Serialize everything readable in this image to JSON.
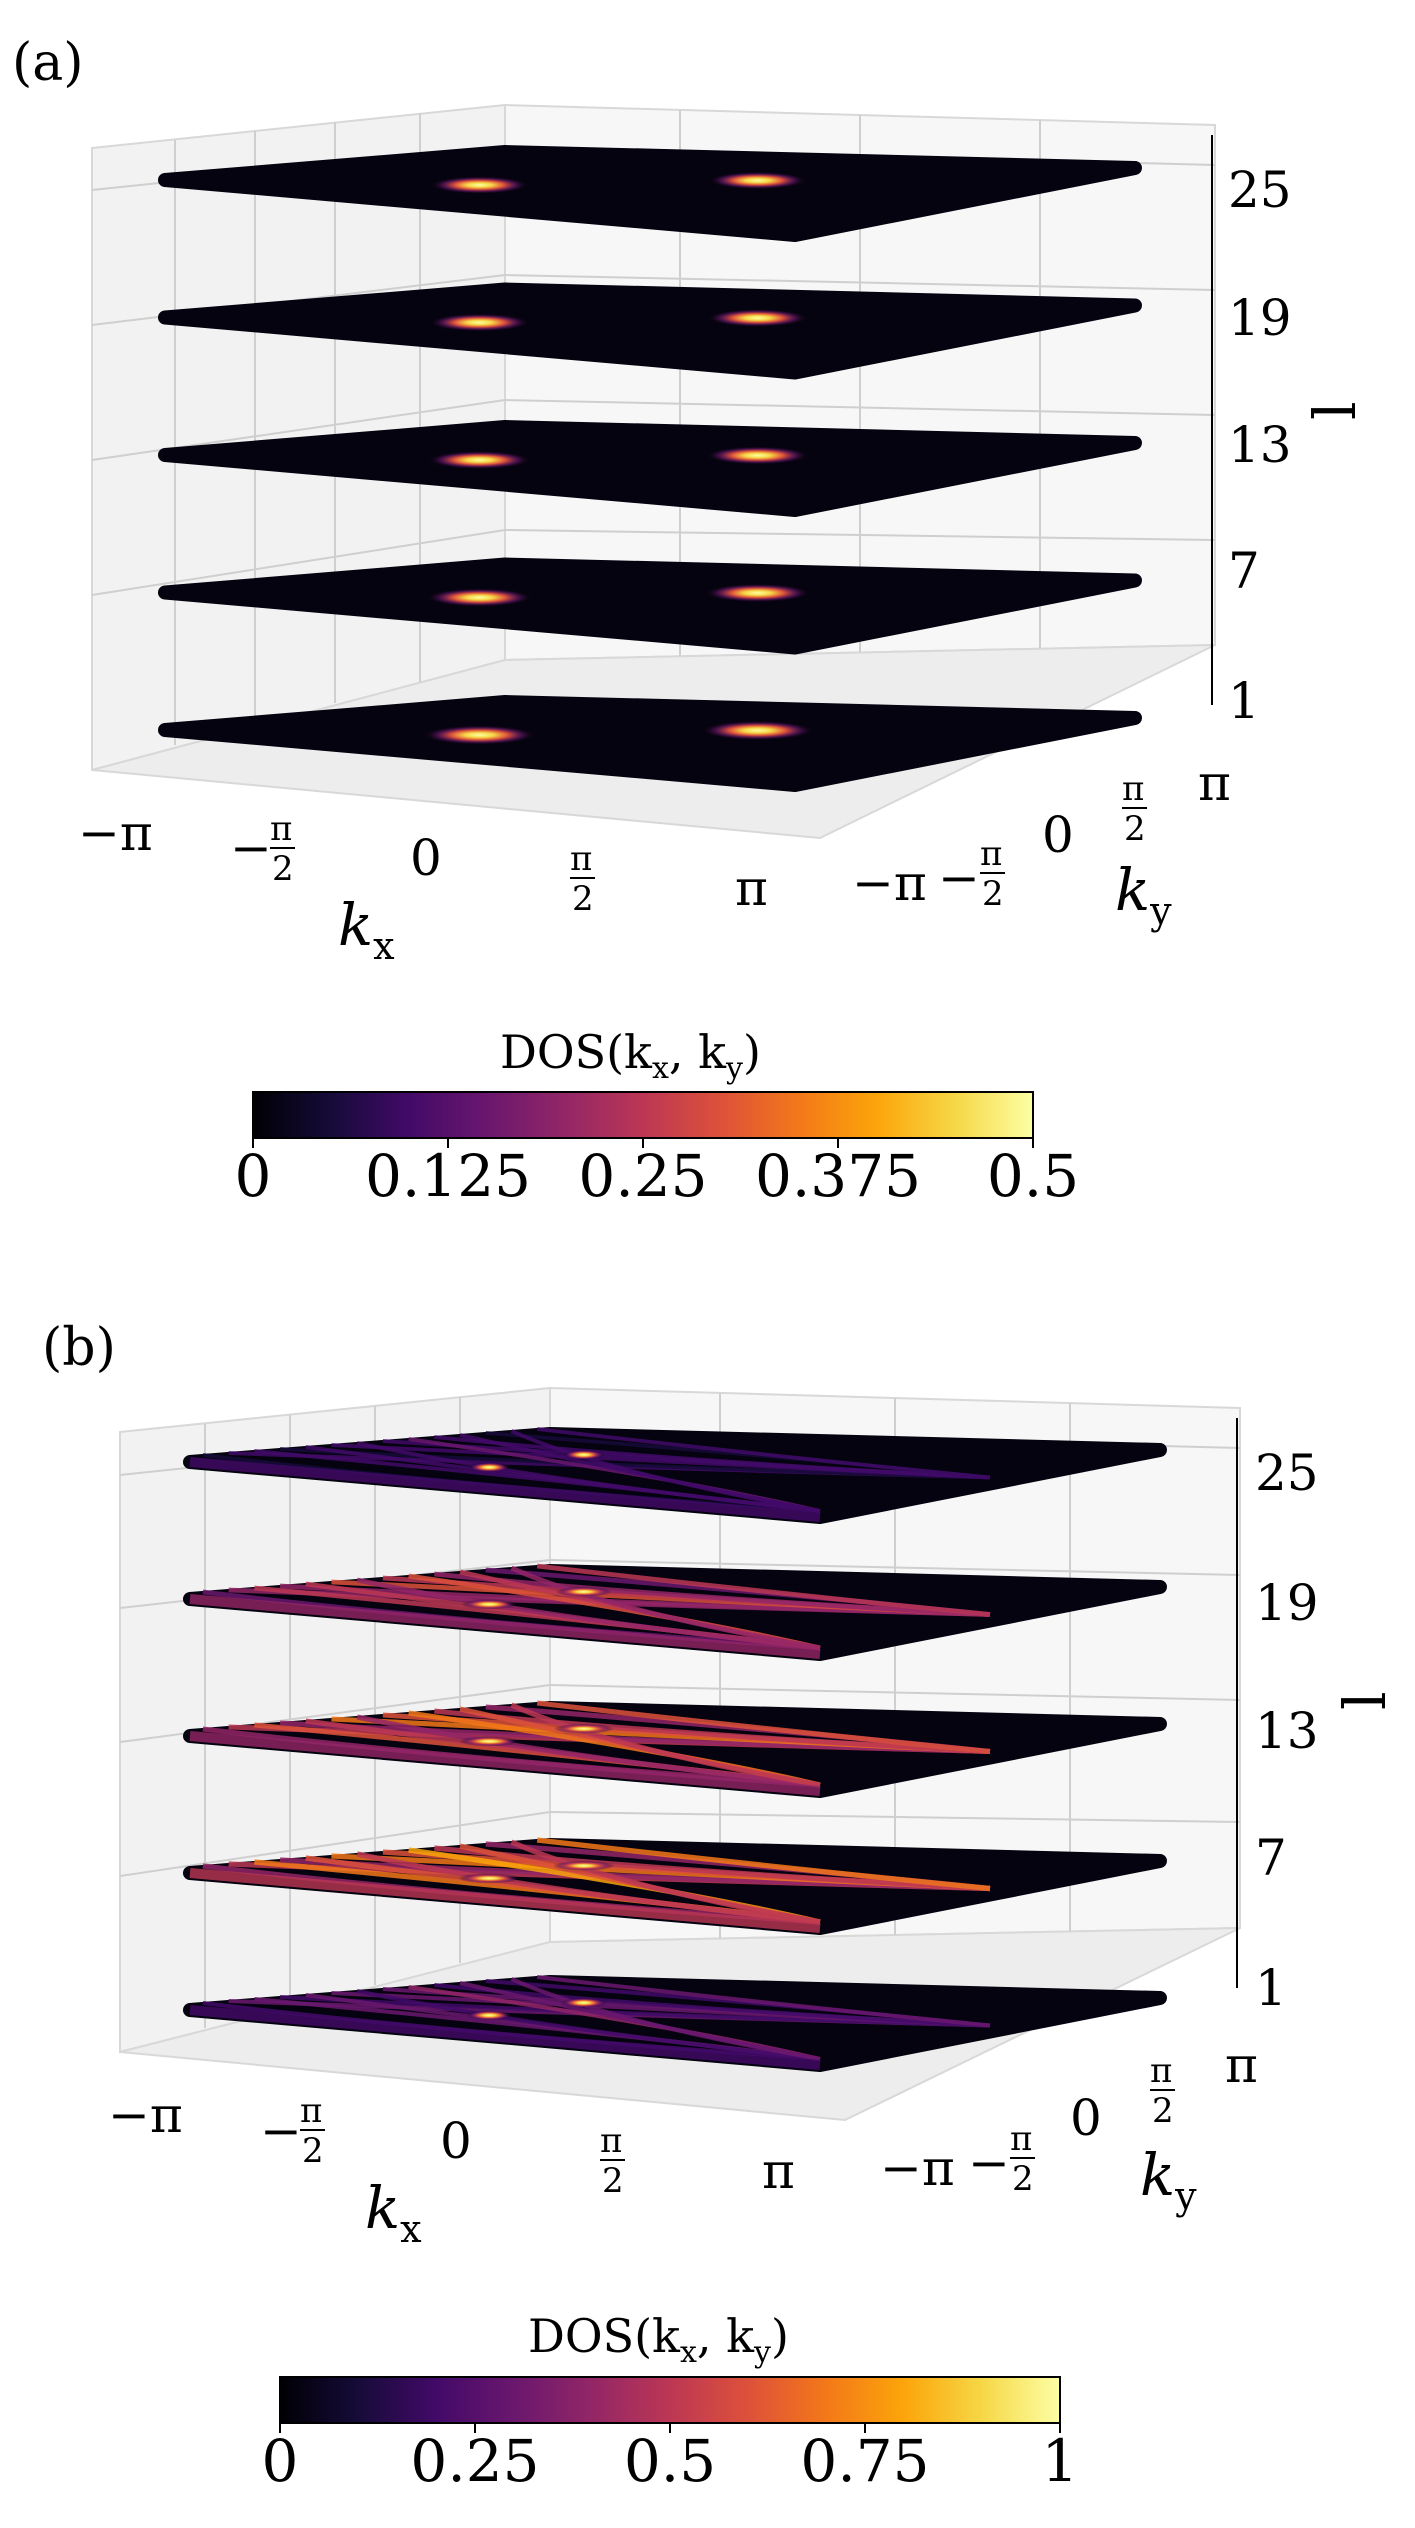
{
  "chart_data": [
    {
      "type": "heatmap",
      "panel_label": "(a)",
      "title": "",
      "xlabel": "k",
      "xlabel_sub": "x",
      "ylabel": "k",
      "ylabel_sub": "y",
      "zlabel": "l",
      "x_ticks": [
        "−π",
        "−",
        "0",
        "",
        "π"
      ],
      "x_tick_fracs": [
        "π",
        "π",
        "π"
      ],
      "y_ticks": [
        "−π",
        "−",
        "0",
        "",
        "π"
      ],
      "z_ticks": [
        "1",
        "7",
        "13",
        "19",
        "25"
      ],
      "layers": [
        1,
        7,
        13,
        19,
        25
      ],
      "hotspots_per_layer": [
        {
          "layer": 1,
          "peaks": [
            {
              "kx": -1.57,
              "ky": 0.6,
              "value": 0.48
            },
            {
              "kx": 1.57,
              "ky": -0.6,
              "value": 0.48
            }
          ]
        },
        {
          "layer": 7,
          "peaks": [
            {
              "kx": -1.57,
              "ky": 0.6,
              "value": 0.42
            },
            {
              "kx": 1.57,
              "ky": -0.6,
              "value": 0.42
            }
          ]
        },
        {
          "layer": 13,
          "peaks": [
            {
              "kx": -1.57,
              "ky": 0.6,
              "value": 0.4
            },
            {
              "kx": 1.57,
              "ky": -0.6,
              "value": 0.4
            }
          ]
        },
        {
          "layer": 19,
          "peaks": [
            {
              "kx": -1.57,
              "ky": 0.6,
              "value": 0.38
            },
            {
              "kx": 1.57,
              "ky": -0.6,
              "value": 0.38
            }
          ]
        },
        {
          "layer": 25,
          "peaks": [
            {
              "kx": -1.57,
              "ky": 0.6,
              "value": 0.36
            },
            {
              "kx": 1.57,
              "ky": -0.6,
              "value": 0.36
            }
          ]
        }
      ],
      "colorbar": {
        "label": "DOS(k",
        "label_sub1": "x",
        "label_mid": ", k",
        "label_sub2": "y",
        "label_end": ")",
        "ticks": [
          "0",
          "0.125",
          "0.25",
          "0.375",
          "0.5"
        ],
        "range": [
          0,
          0.5
        ],
        "colormap": "inferno"
      }
    },
    {
      "type": "heatmap",
      "panel_label": "(b)",
      "title": "",
      "xlabel": "k",
      "xlabel_sub": "x",
      "ylabel": "k",
      "ylabel_sub": "y",
      "zlabel": "l",
      "x_ticks": [
        "−π",
        "−",
        "0",
        "",
        "π"
      ],
      "x_tick_fracs": [
        "π",
        "π",
        "π"
      ],
      "y_ticks": [
        "−π",
        "−",
        "0",
        "",
        "π"
      ],
      "z_ticks": [
        "1",
        "7",
        "13",
        "19",
        "25"
      ],
      "layers": [
        1,
        7,
        13,
        19,
        25
      ],
      "layer_intensity": [
        {
          "layer": 1,
          "value": 0.35
        },
        {
          "layer": 7,
          "value": 0.75
        },
        {
          "layer": 13,
          "value": 0.7
        },
        {
          "layer": 19,
          "value": 0.6
        },
        {
          "layer": 25,
          "value": 0.25
        }
      ],
      "colorbar": {
        "label": "DOS(k",
        "label_sub1": "x",
        "label_mid": ", k",
        "label_sub2": "y",
        "label_end": ")",
        "ticks": [
          "0",
          "0.25",
          "0.5",
          "0.75",
          "1"
        ],
        "range": [
          0,
          1
        ],
        "colormap": "inferno"
      }
    }
  ]
}
